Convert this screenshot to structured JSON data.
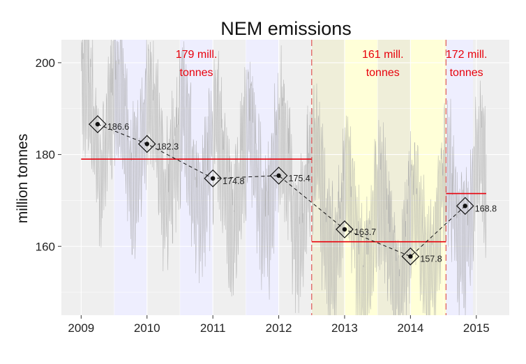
{
  "chart_data": {
    "type": "line",
    "title": "NEM emissions",
    "xlabel": "",
    "ylabel": "million tonnes",
    "xlim": [
      2008.7,
      2015.5
    ],
    "ylim": [
      145,
      205
    ],
    "x_ticks": [
      "2009",
      "2010",
      "2011",
      "2012",
      "2013",
      "2014",
      "2015"
    ],
    "y_ticks": [
      "160",
      "180",
      "200"
    ],
    "grid": true,
    "series": [
      {
        "values": [
          {
            "x": 2009.25,
            "y": 186.6,
            "label": "186.6"
          },
          {
            "x": 2010.0,
            "y": 182.3,
            "label": "182.3"
          },
          {
            "x": 2011.0,
            "y": 174.8,
            "label": "174.8"
          },
          {
            "x": 2012.0,
            "y": 175.4,
            "label": "175.4"
          },
          {
            "x": 2013.0,
            "y": 163.7,
            "label": "163.7"
          },
          {
            "x": 2014.0,
            "y": 157.8,
            "label": "157.8"
          },
          {
            "x": 2014.83,
            "y": 168.8,
            "label": "168.8"
          }
        ]
      }
    ],
    "period_means": [
      {
        "x_start": 2009.0,
        "x_end": 2012.5,
        "y": 179,
        "label_1": "179  mill.",
        "label_2": "tonnes"
      },
      {
        "x_start": 2012.5,
        "x_end": 2014.54,
        "y": 161,
        "label_1": "161  mill.",
        "label_2": "tonnes"
      },
      {
        "x_start": 2014.54,
        "x_end": 2015.15,
        "y": 171.5,
        "label_1": "172  mill.",
        "label_2": "tonnes"
      }
    ],
    "period_boundaries": [
      2012.5,
      2014.54
    ],
    "shaded_bands": [
      {
        "x_start": 2009.5,
        "x_end": 2010.0,
        "color": "#eeeefe"
      },
      {
        "x_start": 2010.5,
        "x_end": 2011.0,
        "color": "#eeeefe"
      },
      {
        "x_start": 2011.5,
        "x_end": 2012.0,
        "color": "#eeeefe"
      },
      {
        "x_start": 2012.5,
        "x_end": 2013.0,
        "color": "#efeed9"
      },
      {
        "x_start": 2013.0,
        "x_end": 2013.5,
        "color": "#ffffd8"
      },
      {
        "x_start": 2013.5,
        "x_end": 2014.0,
        "color": "#efeed9"
      },
      {
        "x_start": 2014.0,
        "x_end": 2014.54,
        "color": "#ffffd8"
      },
      {
        "x_start": 2014.54,
        "x_end": 2014.95,
        "color": "#eeeefe"
      }
    ],
    "colors": {
      "panel": "#efefef",
      "grid": "#ffffff",
      "mean_line": "#e8000b",
      "boundary": "#e06060",
      "trace": "#a8a8a8",
      "annual_line": "#111111"
    }
  }
}
